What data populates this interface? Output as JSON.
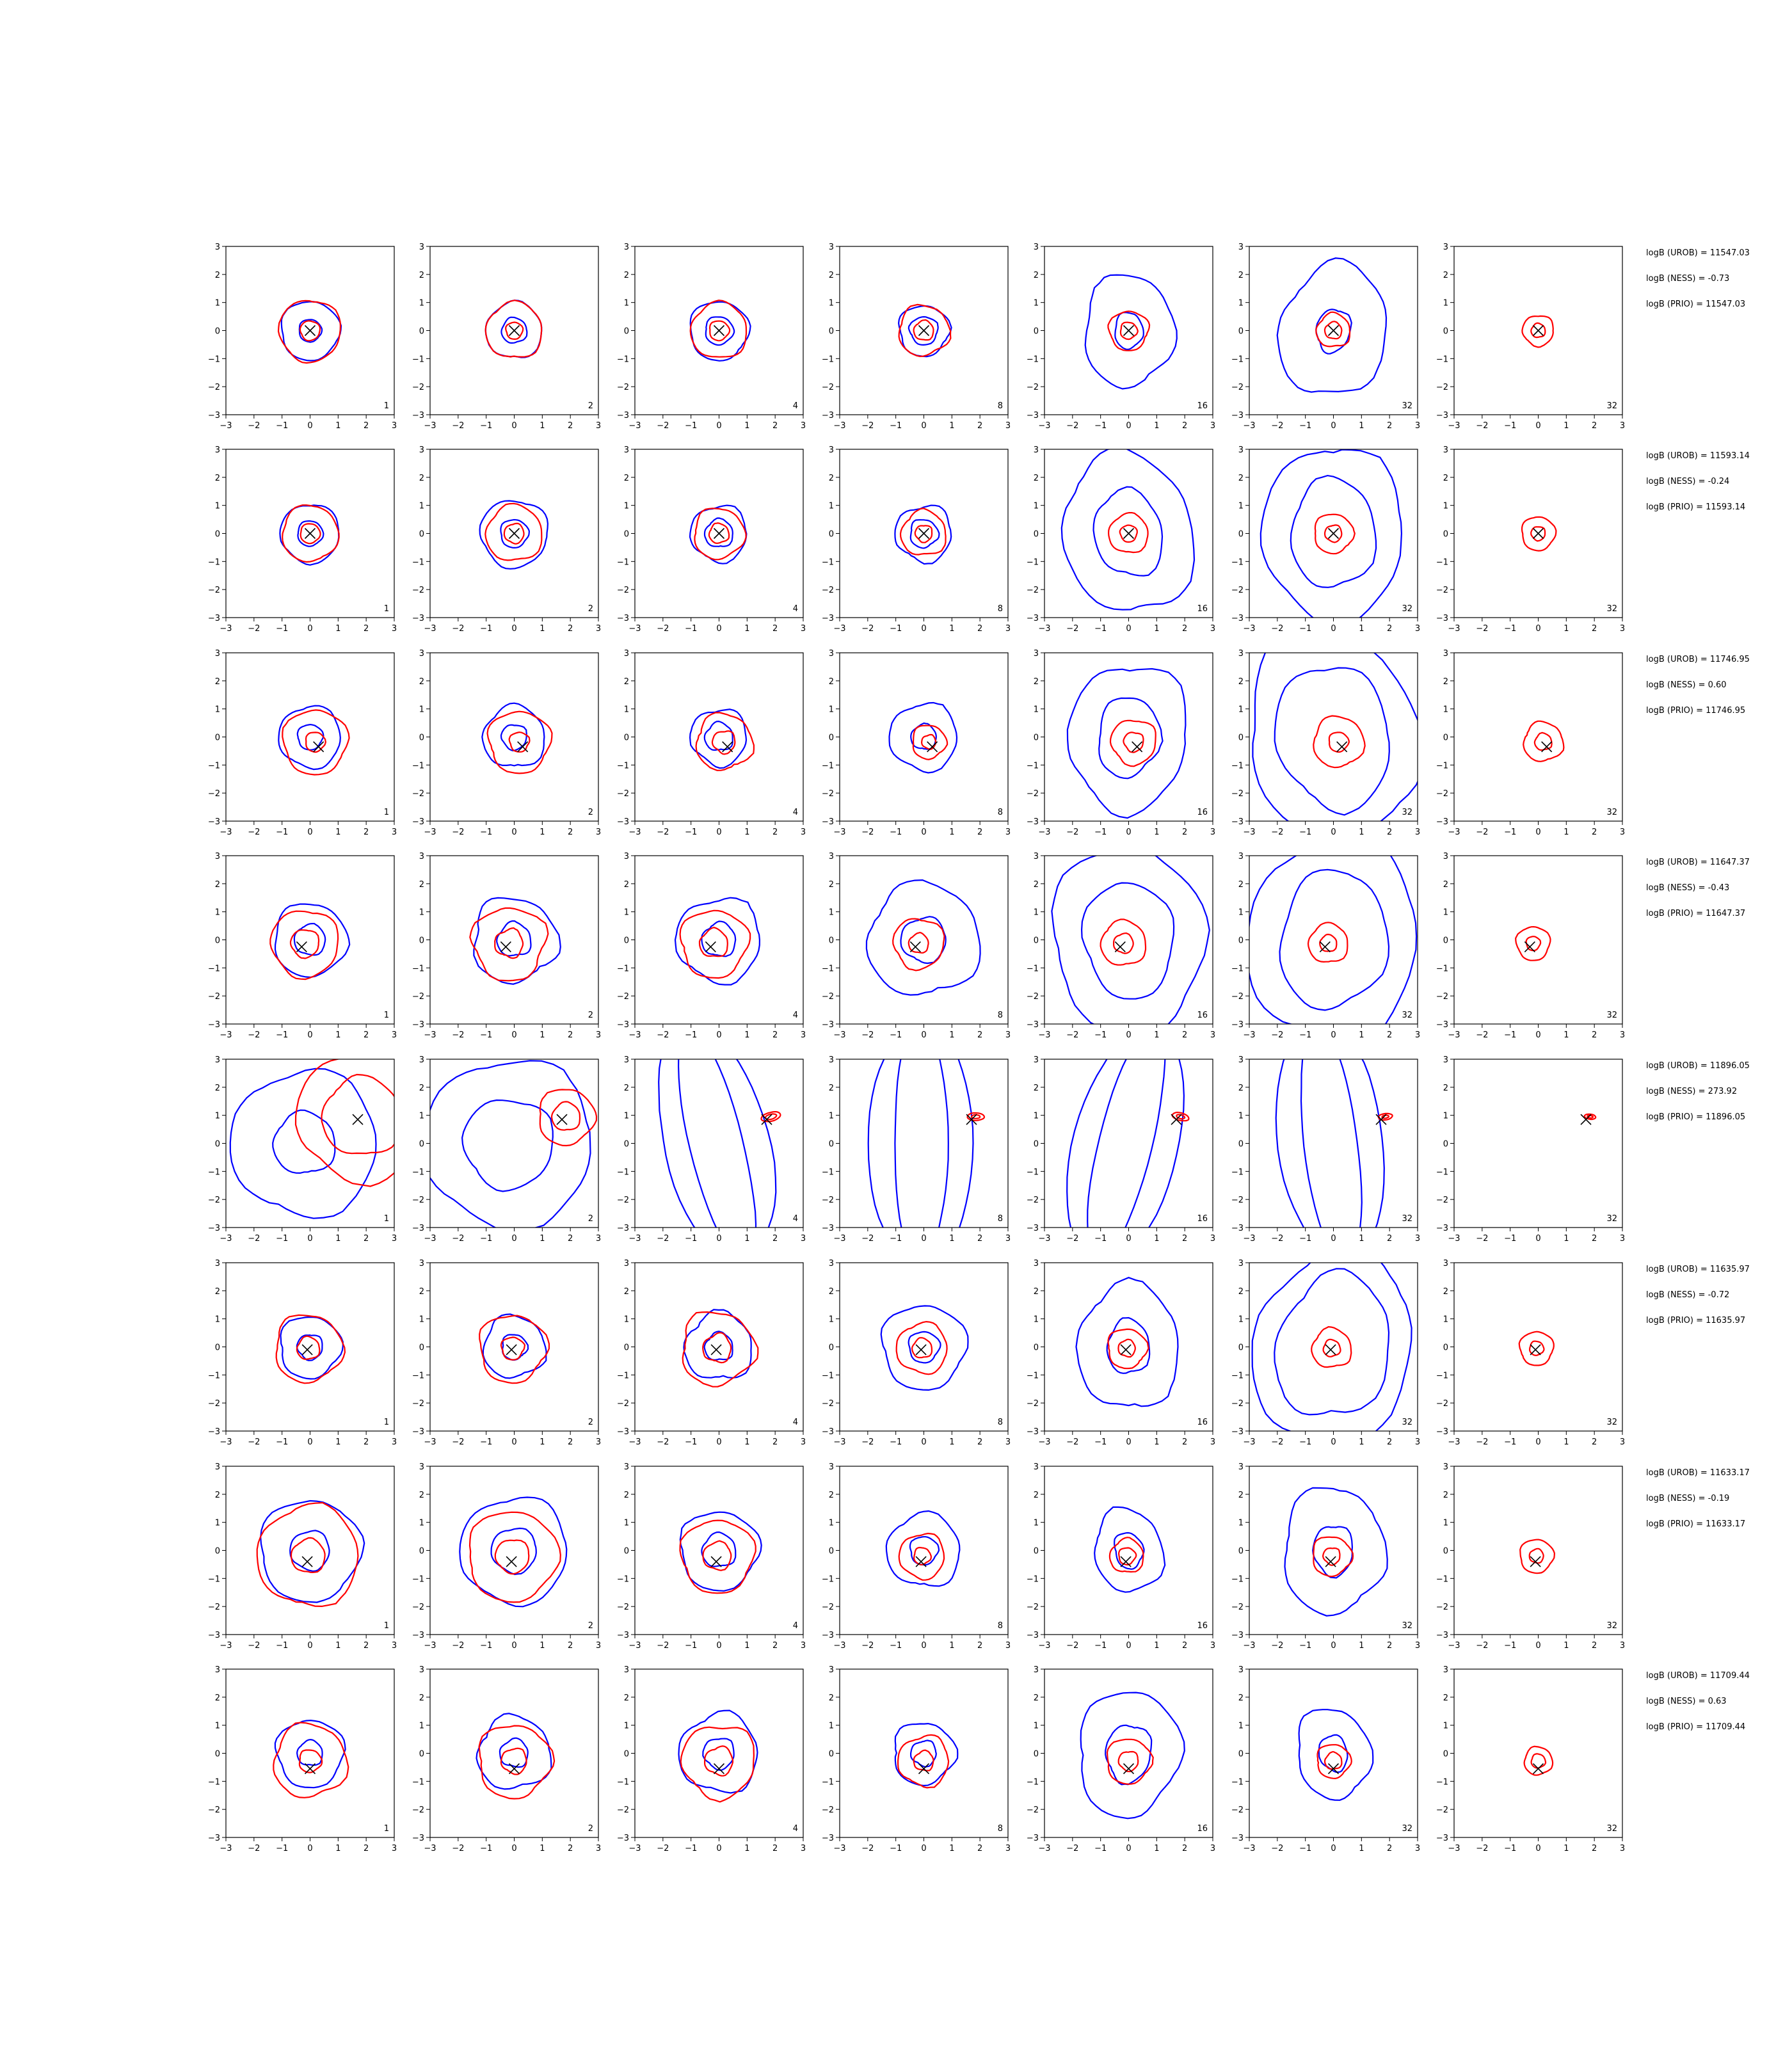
{
  "chart_data": {
    "type": "contour",
    "grid": false,
    "xlim": [
      -3,
      3
    ],
    "ylim": [
      -3,
      3
    ],
    "tick_labels": [
      "−3",
      "−2",
      "−1",
      "0",
      "1",
      "2",
      "3"
    ],
    "colors": {
      "blue": "#0000ff",
      "red": "#ff0000",
      "marker": "#000000"
    },
    "rows": [
      {
        "truth": [
          0.0,
          0.0
        ],
        "stats": [
          "logB (UROB) = 11547.03",
          "logB (NESS) = -0.73",
          "logB (PRIO) = 11547.03"
        ],
        "panels": [
          {
            "label": "1",
            "blue": [
              1.05,
              0.4
            ],
            "red": [
              1.1,
              0.35
            ],
            "spread": 0.08
          },
          {
            "label": "2",
            "blue": [
              1.0,
              0.45
            ],
            "red": [
              1.0,
              0.3
            ],
            "spread": 0.1
          },
          {
            "label": "4",
            "blue": [
              1.05,
              0.5
            ],
            "red": [
              1.0,
              0.35
            ],
            "spread": 0.1
          },
          {
            "label": "8",
            "blue": [
              0.9,
              0.5
            ],
            "red": [
              0.9,
              0.35
            ],
            "spread": 0.12
          },
          {
            "label": "16",
            "blue": [
              1.6,
              0.5
            ],
            "red": [
              0.7,
              0.3
            ],
            "spread": 0.12
          },
          {
            "label": "32",
            "blue": [
              1.9,
              0.6
            ],
            "red": [
              0.6,
              0.3
            ],
            "spread": 0.12
          },
          {
            "label": "32",
            "blue": [],
            "red": [
              0.55,
              0.25
            ],
            "spread": 0.1
          }
        ]
      },
      {
        "truth": [
          0.0,
          0.0
        ],
        "stats": [
          "logB (UROB) = 11593.14",
          "logB (NESS) = -0.24",
          "logB (PRIO) = 11593.14"
        ],
        "panels": [
          {
            "label": "1",
            "blue": [
              1.05,
              0.45
            ],
            "red": [
              1.0,
              0.35
            ],
            "spread": 0.08
          },
          {
            "label": "2",
            "blue": [
              1.2,
              0.5
            ],
            "red": [
              1.0,
              0.35
            ],
            "spread": 0.1
          },
          {
            "label": "4",
            "blue": [
              1.0,
              0.5
            ],
            "red": [
              0.9,
              0.35
            ],
            "spread": 0.12
          },
          {
            "label": "8",
            "blue": [
              1.0,
              0.5
            ],
            "red": [
              0.8,
              0.3
            ],
            "spread": 0.14
          },
          {
            "label": "16",
            "blue": [
              2.3,
              1.2
            ],
            "red": [
              0.7,
              0.3
            ],
            "spread": 0.1
          },
          {
            "label": "32",
            "blue": [
              2.5,
              1.5
            ],
            "red": [
              0.7,
              0.3
            ],
            "spread": 0.1
          },
          {
            "label": "32",
            "blue": [],
            "red": [
              0.6,
              0.25
            ],
            "spread": 0.1
          }
        ]
      },
      {
        "truth": [
          0.3,
          -0.35
        ],
        "stats": [
          "logB (UROB) = 11746.95",
          "logB (NESS) = 0.60",
          "logB (PRIO) = 11746.95"
        ],
        "panels": [
          {
            "label": "1",
            "blue": [
              1.1,
              0.45
            ],
            "red": [
              1.15,
              0.35
            ],
            "spread": 0.1
          },
          {
            "label": "2",
            "blue": [
              1.1,
              0.45
            ],
            "red": [
              1.1,
              0.35
            ],
            "spread": 0.12
          },
          {
            "label": "4",
            "blue": [
              1.0,
              0.5
            ],
            "red": [
              1.0,
              0.4
            ],
            "spread": 0.14
          },
          {
            "label": "8",
            "blue": [
              1.2,
              0.45
            ],
            "red": [
              0.6,
              0.25
            ],
            "spread": 0.12
          },
          {
            "label": "16",
            "blue": [
              2.1,
              1.1
            ],
            "red": [
              0.8,
              0.35
            ],
            "spread": 0.12
          },
          {
            "label": "32",
            "blue": [
              3.0,
              2.0
            ],
            "red": [
              0.9,
              0.35
            ],
            "spread": 0.1
          },
          {
            "label": "32",
            "blue": [],
            "red": [
              0.7,
              0.3
            ],
            "spread": 0.12
          }
        ]
      },
      {
        "truth": [
          -0.3,
          -0.25
        ],
        "stats": [
          "logB (UROB) = 11647.37",
          "logB (NESS) = -0.43",
          "logB (PRIO) = 11647.37"
        ],
        "panels": [
          {
            "label": "1",
            "blue": [
              1.3,
              0.55
            ],
            "red": [
              1.2,
              0.5
            ],
            "spread": 0.1
          },
          {
            "label": "2",
            "blue": [
              1.5,
              0.6
            ],
            "red": [
              1.3,
              0.5
            ],
            "spread": 0.16
          },
          {
            "label": "4",
            "blue": [
              1.5,
              0.6
            ],
            "red": [
              1.2,
              0.5
            ],
            "spread": 0.14
          },
          {
            "label": "8",
            "blue": [
              2.0,
              0.8
            ],
            "red": [
              0.9,
              0.35
            ],
            "spread": 0.12
          },
          {
            "label": "16",
            "blue": [
              2.7,
              1.6
            ],
            "red": [
              0.8,
              0.35
            ],
            "spread": 0.1
          },
          {
            "label": "32",
            "blue": [
              3.0,
              1.9
            ],
            "red": [
              0.7,
              0.3
            ],
            "spread": 0.1
          },
          {
            "label": "32",
            "blue": [],
            "red": [
              0.6,
              0.25
            ],
            "spread": 0.1
          }
        ]
      },
      {
        "truth": [
          1.7,
          0.85
        ],
        "stats": [
          "logB (UROB) = 11896.05",
          "logB (NESS) = 273.92",
          "logB (PRIO) = 11896.05"
        ],
        "panels": [
          {
            "label": "1",
            "blue": [
              2.6,
              1.1
            ],
            "red": [
              2.3,
              1.4
            ],
            "spread": 0.1
          },
          {
            "label": "2",
            "blue": [
              3.0,
              1.6
            ],
            "red": [
              1.0,
              0.5
            ],
            "spread": 0.1
          },
          {
            "label": "4",
            "blue": [
              3.6,
              3.4
            ],
            "red": [
              0.35,
              0.2
            ],
            "spread": 0.04
          },
          {
            "label": "8",
            "blue": [
              3.6,
              3.4
            ],
            "red": [
              0.3,
              0.15
            ],
            "spread": 0.04
          },
          {
            "label": "16",
            "blue": [
              3.6,
              3.4
            ],
            "red": [
              0.3,
              0.15
            ],
            "spread": 0.04
          },
          {
            "label": "32",
            "blue": [
              3.6,
              3.4
            ],
            "red": [
              0.25,
              0.12
            ],
            "spread": 0.04
          },
          {
            "label": "32",
            "blue": [],
            "red": [
              0.2,
              0.1
            ],
            "spread": 0.04
          }
        ]
      },
      {
        "truth": [
          -0.1,
          -0.1
        ],
        "stats": [
          "logB (UROB) = 11635.97",
          "logB (NESS) = -0.72",
          "logB (PRIO) = 11635.97"
        ],
        "panels": [
          {
            "label": "1",
            "blue": [
              1.1,
              0.45
            ],
            "red": [
              1.2,
              0.4
            ],
            "spread": 0.12
          },
          {
            "label": "2",
            "blue": [
              1.1,
              0.45
            ],
            "red": [
              1.2,
              0.4
            ],
            "spread": 0.14
          },
          {
            "label": "4",
            "blue": [
              1.2,
              0.5
            ],
            "red": [
              1.3,
              0.5
            ],
            "spread": 0.16
          },
          {
            "label": "8",
            "blue": [
              1.5,
              0.55
            ],
            "red": [
              0.9,
              0.35
            ],
            "spread": 0.12
          },
          {
            "label": "16",
            "blue": [
              1.8,
              0.75
            ],
            "red": [
              0.7,
              0.3
            ],
            "spread": 0.12
          },
          {
            "label": "32",
            "blue": [
              2.8,
              2.0
            ],
            "red": [
              0.7,
              0.3
            ],
            "spread": 0.12
          },
          {
            "label": "32",
            "blue": [],
            "red": [
              0.6,
              0.25
            ],
            "spread": 0.1
          }
        ]
      },
      {
        "truth": [
          -0.1,
          -0.4
        ],
        "stats": [
          "logB (UROB) = 11633.17",
          "logB (NESS) = -0.19",
          "logB (PRIO) = 11633.17"
        ],
        "panels": [
          {
            "label": "1",
            "blue": [
              1.8,
              0.7
            ],
            "red": [
              1.8,
              0.6
            ],
            "spread": 0.1
          },
          {
            "label": "2",
            "blue": [
              1.9,
              0.8
            ],
            "red": [
              1.6,
              0.6
            ],
            "spread": 0.1
          },
          {
            "label": "4",
            "blue": [
              1.4,
              0.6
            ],
            "red": [
              1.3,
              0.5
            ],
            "spread": 0.12
          },
          {
            "label": "8",
            "blue": [
              1.3,
              0.5
            ],
            "red": [
              0.8,
              0.3
            ],
            "spread": 0.12
          },
          {
            "label": "16",
            "blue": [
              1.2,
              0.5
            ],
            "red": [
              0.6,
              0.3
            ],
            "spread": 0.12
          },
          {
            "label": "32",
            "blue": [
              1.8,
              0.7
            ],
            "red": [
              0.7,
              0.3
            ],
            "spread": 0.12
          },
          {
            "label": "32",
            "blue": [],
            "red": [
              0.6,
              0.25
            ],
            "spread": 0.1
          }
        ]
      },
      {
        "truth": [
          0.0,
          -0.55
        ],
        "stats": [
          "logB (UROB) = 11709.44",
          "logB (NESS) = 0.63",
          "logB (PRIO) = 11709.44"
        ],
        "panels": [
          {
            "label": "1",
            "blue": [
              1.2,
              0.45
            ],
            "red": [
              1.3,
              0.4
            ],
            "spread": 0.12
          },
          {
            "label": "2",
            "blue": [
              1.3,
              0.5
            ],
            "red": [
              1.3,
              0.45
            ],
            "spread": 0.14
          },
          {
            "label": "4",
            "blue": [
              1.4,
              0.55
            ],
            "red": [
              1.3,
              0.5
            ],
            "spread": 0.14
          },
          {
            "label": "8",
            "blue": [
              1.1,
              0.45
            ],
            "red": [
              0.9,
              0.35
            ],
            "spread": 0.14
          },
          {
            "label": "16",
            "blue": [
              1.8,
              0.8
            ],
            "red": [
              0.8,
              0.35
            ],
            "spread": 0.12
          },
          {
            "label": "32",
            "blue": [
              1.3,
              0.5
            ],
            "red": [
              0.6,
              0.3
            ],
            "spread": 0.12
          },
          {
            "label": "32",
            "blue": [],
            "red": [
              0.5,
              0.25
            ],
            "spread": 0.1
          }
        ]
      }
    ]
  }
}
